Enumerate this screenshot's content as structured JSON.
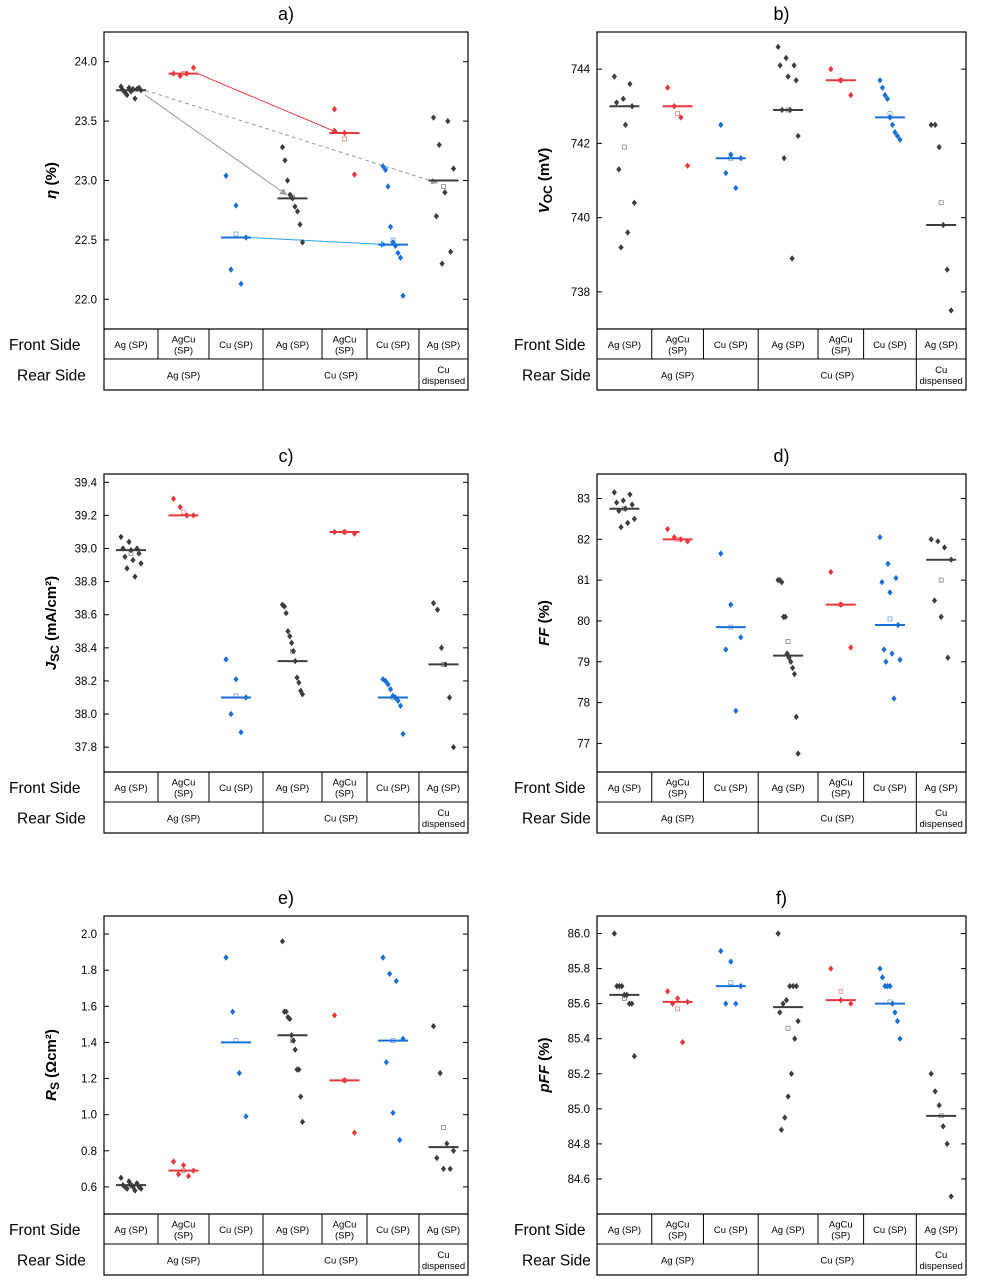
{
  "colors": {
    "ag": "#3d3d3d",
    "agcu": "#e8383d",
    "cu": "#1a6fd6",
    "frame": "#000000",
    "arrow_red": "#e8383d",
    "arrow_gray": "#9a9a9a",
    "arrow_blue": "#27a6e8"
  },
  "table": {
    "front_label": "Front Side",
    "rear_label": "Rear Side",
    "front_groups": [
      [
        "Ag (SP)"
      ],
      [
        "AgCu",
        "(SP)"
      ],
      [
        "Cu (SP)"
      ],
      [
        "Ag (SP)"
      ],
      [
        "AgCu",
        "(SP)"
      ],
      [
        "Cu (SP)"
      ],
      [
        "Ag (SP)"
      ]
    ],
    "rear_groups": [
      {
        "lines": [
          "Ag (SP)"
        ],
        "span": [
          0,
          2
        ]
      },
      {
        "lines": [
          "Cu (SP)"
        ],
        "span": [
          3,
          5
        ]
      },
      {
        "lines": [
          "Cu",
          "dispensed"
        ],
        "span": [
          6,
          6
        ]
      }
    ]
  },
  "chart_data": [
    {
      "type": "scatter",
      "panel": "a)",
      "ylabel_main": "η",
      "ylabel_sub": "",
      "ylabel_unit": " (%)",
      "ylim": [
        21.75,
        24.25
      ],
      "yticks": [
        "22.0",
        "22.5",
        "23.0",
        "23.5",
        "24.0"
      ],
      "groups": [
        {
          "color": "ag",
          "median": 23.76,
          "mean": 23.76,
          "points": [
            23.79,
            23.78,
            23.77,
            23.76,
            23.75,
            23.78,
            23.74,
            23.77,
            23.76,
            23.72,
            23.69
          ]
        },
        {
          "color": "agcu",
          "median": 23.9,
          "mean": 23.9,
          "points": [
            23.9,
            23.88,
            23.9,
            23.95
          ]
        },
        {
          "color": "cu",
          "median": 22.52,
          "mean": 22.55,
          "points": [
            23.04,
            22.79,
            22.52,
            22.25,
            22.13
          ]
        },
        {
          "color": "ag",
          "median": 22.85,
          "mean": 22.86,
          "points": [
            23.28,
            23.17,
            23.0,
            22.88,
            22.85,
            22.78,
            22.74,
            22.63,
            22.48
          ]
        },
        {
          "color": "agcu",
          "median": 23.4,
          "mean": 23.35,
          "points": [
            23.6,
            23.4,
            23.05
          ]
        },
        {
          "color": "cu",
          "median": 22.46,
          "mean": 22.5,
          "points": [
            23.12,
            23.09,
            22.95,
            22.61,
            22.48,
            22.45,
            22.39,
            22.35,
            22.03
          ]
        },
        {
          "color": "ag",
          "median": 23.0,
          "mean": 22.95,
          "points": [
            23.53,
            23.5,
            23.3,
            23.1,
            22.9,
            22.7,
            22.4,
            22.3
          ]
        }
      ],
      "arrows": [
        {
          "from": [
            1,
            23.9
          ],
          "to": [
            4,
            23.4
          ],
          "color": "arrow_red",
          "dashed": false
        },
        {
          "from": [
            0,
            23.76
          ],
          "to": [
            6,
            22.98
          ],
          "color": "arrow_gray",
          "dashed": true
        },
        {
          "from": [
            0,
            23.72
          ],
          "to": [
            3,
            22.88
          ],
          "color": "arrow_gray",
          "dashed": false
        },
        {
          "from": [
            2,
            22.52
          ],
          "to": [
            5,
            22.46
          ],
          "color": "arrow_blue",
          "dashed": false
        }
      ]
    },
    {
      "type": "scatter",
      "panel": "b)",
      "ylabel_main": "V",
      "ylabel_sub": "OC",
      "ylabel_unit": " (mV)",
      "ylim": [
        737,
        745
      ],
      "yticks": [
        "738",
        "740",
        "742",
        "744"
      ],
      "groups": [
        {
          "color": "ag",
          "median": 743.0,
          "mean": 741.9,
          "points": [
            743.8,
            743.6,
            743.2,
            743.1,
            743.0,
            742.5,
            741.3,
            740.4,
            739.6,
            739.2
          ]
        },
        {
          "color": "agcu",
          "median": 743.0,
          "mean": 742.8,
          "points": [
            743.5,
            743.0,
            742.7,
            741.4
          ]
        },
        {
          "color": "cu",
          "median": 741.6,
          "mean": 741.6,
          "points": [
            742.5,
            741.7,
            741.6,
            741.2,
            740.8
          ]
        },
        {
          "color": "ag",
          "median": 742.9,
          "mean": 742.9,
          "points": [
            744.6,
            744.3,
            744.1,
            744.1,
            743.8,
            743.7,
            742.9,
            742.9,
            742.2,
            741.6,
            738.9
          ]
        },
        {
          "color": "agcu",
          "median": 743.7,
          "mean": 743.7,
          "points": [
            744.0,
            743.7,
            743.3
          ]
        },
        {
          "color": "cu",
          "median": 742.7,
          "mean": 742.8,
          "points": [
            743.7,
            743.5,
            743.3,
            743.2,
            742.7,
            742.5,
            742.3,
            742.2,
            742.1
          ]
        },
        {
          "color": "ag",
          "median": 739.8,
          "mean": 740.4,
          "points": [
            742.5,
            742.5,
            741.9,
            739.8,
            738.6,
            737.5
          ]
        }
      ]
    },
    {
      "type": "scatter",
      "panel": "c)",
      "ylabel_main": "J",
      "ylabel_sub": "SC",
      "ylabel_unit": " (mA/cm²)",
      "ylim": [
        37.65,
        39.45
      ],
      "yticks": [
        "37.8",
        "38.0",
        "38.2",
        "38.4",
        "38.6",
        "38.8",
        "39.0",
        "39.2",
        "39.4"
      ],
      "groups": [
        {
          "color": "ag",
          "median": 38.99,
          "mean": 38.97,
          "points": [
            39.07,
            39.04,
            39.0,
            39.0,
            38.99,
            38.97,
            38.95,
            38.93,
            38.91,
            38.88,
            38.83
          ]
        },
        {
          "color": "agcu",
          "median": 39.2,
          "mean": 39.22,
          "points": [
            39.3,
            39.25,
            39.2,
            39.2
          ]
        },
        {
          "color": "cu",
          "median": 38.1,
          "mean": 38.11,
          "points": [
            38.33,
            38.21,
            38.1,
            38.0,
            37.89
          ]
        },
        {
          "color": "ag",
          "median": 38.32,
          "mean": 38.38,
          "points": [
            38.66,
            38.65,
            38.61,
            38.5,
            38.47,
            38.43,
            38.38,
            38.32,
            38.22,
            38.19,
            38.14,
            38.12
          ]
        },
        {
          "color": "agcu",
          "median": 39.1,
          "mean": 39.1,
          "points": [
            39.1,
            39.1,
            39.09
          ]
        },
        {
          "color": "cu",
          "median": 38.1,
          "mean": 38.1,
          "points": [
            38.21,
            38.2,
            38.18,
            38.15,
            38.11,
            38.1,
            38.08,
            38.05,
            37.88
          ]
        },
        {
          "color": "ag",
          "median": 38.3,
          "mean": 38.3,
          "points": [
            38.67,
            38.63,
            38.4,
            38.3,
            38.1,
            37.8
          ]
        }
      ]
    },
    {
      "type": "scatter",
      "panel": "d)",
      "ylabel_main": "FF",
      "ylabel_sub": "",
      "ylabel_unit": " (%)",
      "ylim": [
        76.3,
        83.6
      ],
      "yticks": [
        "77",
        "78",
        "79",
        "80",
        "81",
        "82",
        "83"
      ],
      "groups": [
        {
          "color": "ag",
          "median": 82.75,
          "mean": 82.75,
          "points": [
            83.15,
            83.1,
            82.95,
            82.9,
            82.85,
            82.75,
            82.7,
            82.5,
            82.4,
            82.3
          ]
        },
        {
          "color": "agcu",
          "median": 82.0,
          "mean": 82.0,
          "points": [
            82.25,
            82.05,
            82.0,
            81.95
          ]
        },
        {
          "color": "cu",
          "median": 79.85,
          "mean": 79.85,
          "points": [
            81.65,
            80.4,
            79.6,
            79.3,
            77.8
          ]
        },
        {
          "color": "ag",
          "median": 79.15,
          "mean": 79.5,
          "points": [
            81.0,
            81.0,
            80.95,
            80.1,
            80.1,
            79.2,
            79.1,
            79.0,
            78.85,
            78.7,
            77.65,
            76.75
          ]
        },
        {
          "color": "agcu",
          "median": 80.4,
          "mean": 80.4,
          "points": [
            81.2,
            80.4,
            79.35
          ]
        },
        {
          "color": "cu",
          "median": 79.9,
          "mean": 80.05,
          "points": [
            82.05,
            81.4,
            81.05,
            80.95,
            80.7,
            79.9,
            79.3,
            79.2,
            79.05,
            79.0,
            78.1
          ]
        },
        {
          "color": "ag",
          "median": 81.5,
          "mean": 81.0,
          "points": [
            82.0,
            81.95,
            81.8,
            81.5,
            80.5,
            80.1,
            79.1
          ]
        }
      ]
    },
    {
      "type": "scatter",
      "panel": "e)",
      "ylabel_main": "R",
      "ylabel_sub": "S",
      "ylabel_unit": " (Ωcm²)",
      "ylim": [
        0.45,
        2.1
      ],
      "yticks": [
        "0.6",
        "0.8",
        "1.0",
        "1.2",
        "1.4",
        "1.6",
        "1.8",
        "2.0"
      ],
      "groups": [
        {
          "color": "ag",
          "median": 0.61,
          "mean": 0.61,
          "points": [
            0.65,
            0.63,
            0.62,
            0.61,
            0.61,
            0.6,
            0.6,
            0.6,
            0.59,
            0.59,
            0.58
          ]
        },
        {
          "color": "agcu",
          "median": 0.69,
          "mean": 0.69,
          "points": [
            0.74,
            0.72,
            0.69,
            0.67,
            0.66
          ]
        },
        {
          "color": "cu",
          "median": 1.4,
          "mean": 1.41,
          "points": [
            1.87,
            1.57,
            1.23,
            0.99
          ]
        },
        {
          "color": "ag",
          "median": 1.44,
          "mean": 1.41,
          "points": [
            1.96,
            1.57,
            1.57,
            1.54,
            1.53,
            1.44,
            1.41,
            1.36,
            1.25,
            1.25,
            1.1,
            0.96
          ]
        },
        {
          "color": "agcu",
          "median": 1.19,
          "mean": 1.19,
          "points": [
            1.55,
            1.19,
            0.9
          ]
        },
        {
          "color": "cu",
          "median": 1.41,
          "mean": 1.41,
          "points": [
            1.87,
            1.78,
            1.74,
            1.42,
            1.29,
            1.01,
            0.86
          ]
        },
        {
          "color": "ag",
          "median": 0.82,
          "mean": 0.93,
          "points": [
            1.49,
            1.23,
            0.84,
            0.8,
            0.76,
            0.7,
            0.7
          ]
        }
      ]
    },
    {
      "type": "scatter",
      "panel": "f)",
      "ylabel_main": "pFF",
      "ylabel_sub": "",
      "ylabel_unit": " (%)",
      "ylim": [
        84.4,
        86.1
      ],
      "yticks": [
        "84.6",
        "84.8",
        "85.0",
        "85.2",
        "85.4",
        "85.6",
        "85.8",
        "86.0"
      ],
      "groups": [
        {
          "color": "ag",
          "median": 85.65,
          "mean": 85.63,
          "points": [
            86.0,
            85.7,
            85.7,
            85.7,
            85.65,
            85.65,
            85.6,
            85.6,
            85.3
          ]
        },
        {
          "color": "agcu",
          "median": 85.61,
          "mean": 85.57,
          "points": [
            85.67,
            85.63,
            85.61,
            85.6,
            85.38
          ]
        },
        {
          "color": "cu",
          "median": 85.7,
          "mean": 85.72,
          "points": [
            85.9,
            85.84,
            85.7,
            85.6,
            85.6
          ]
        },
        {
          "color": "ag",
          "median": 85.58,
          "mean": 85.46,
          "points": [
            86.0,
            85.7,
            85.7,
            85.7,
            85.62,
            85.6,
            85.55,
            85.5,
            85.4,
            85.2,
            85.07,
            84.95,
            84.88
          ]
        },
        {
          "color": "agcu",
          "median": 85.62,
          "mean": 85.67,
          "points": [
            85.8,
            85.62,
            85.6
          ]
        },
        {
          "color": "cu",
          "median": 85.6,
          "mean": 85.61,
          "points": [
            85.8,
            85.75,
            85.7,
            85.7,
            85.7,
            85.6,
            85.55,
            85.5,
            85.4
          ]
        },
        {
          "color": "ag",
          "median": 84.96,
          "mean": 84.96,
          "points": [
            85.2,
            85.1,
            85.02,
            84.9,
            84.8,
            84.5
          ]
        }
      ]
    }
  ]
}
